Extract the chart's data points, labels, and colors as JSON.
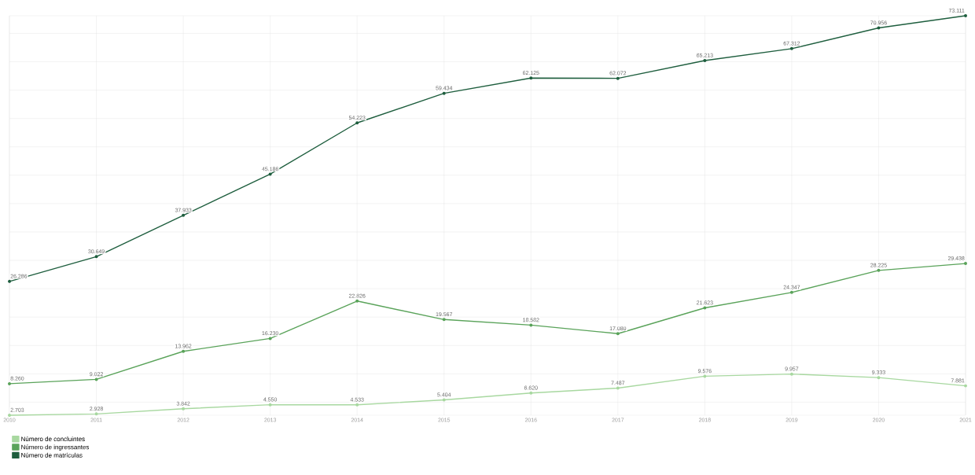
{
  "chart_data": {
    "type": "line",
    "categories": [
      "2010",
      "2011",
      "2012",
      "2013",
      "2014",
      "2015",
      "2016",
      "2017",
      "2018",
      "2019",
      "2020",
      "2021"
    ],
    "series": [
      {
        "name": "Número de concluintes",
        "color": "#a8d8a0",
        "values": [
          2703,
          2928,
          3842,
          4550,
          4533,
          5404,
          6620,
          7487,
          9576,
          9957,
          9333,
          7881
        ],
        "value_labels": [
          "2.703",
          "2.928",
          "3.842",
          "4.550",
          "4.533",
          "5.404",
          "6.620",
          "7.487",
          "9.576",
          "9.957",
          "9.333",
          "7.881"
        ]
      },
      {
        "name": "Número de ingressantes",
        "color": "#5aa35a",
        "values": [
          8260,
          9022,
          13962,
          16230,
          22826,
          19567,
          18582,
          17080,
          21623,
          24347,
          28225,
          29438
        ],
        "value_labels": [
          "8.260",
          "9.022",
          "13.962",
          "16.230",
          "22.826",
          "19.567",
          "18.582",
          "17.080",
          "21.623",
          "24.347",
          "28.225",
          "29.438"
        ]
      },
      {
        "name": "Número de matrículas",
        "color": "#1e5e3e",
        "values": [
          26286,
          30649,
          37933,
          45186,
          54223,
          59434,
          62125,
          62072,
          65213,
          67312,
          70956,
          73111
        ],
        "value_labels": [
          "26.286",
          "30.649",
          "37.933",
          "45.186",
          "54.223",
          "59.434",
          "62.125",
          "62.072",
          "65.213",
          "67.312",
          "70.956",
          "73.111"
        ]
      }
    ],
    "grid": true,
    "legend": "bottom left",
    "marker": "circle",
    "line_style": "solid"
  }
}
